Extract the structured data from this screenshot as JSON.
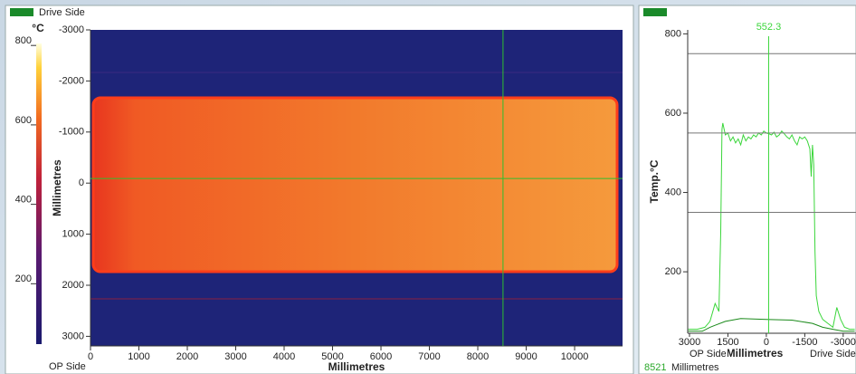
{
  "chart_data": [
    {
      "type": "heatmap",
      "title": "Drive Side",
      "xlabel": "Millimetres",
      "ylabel": "Millimetres",
      "corner_label": "OP Side",
      "xlim": [
        0,
        10990
      ],
      "ylim": [
        -3000,
        3188
      ],
      "xticks": [
        0,
        1000,
        2000,
        3000,
        4000,
        5000,
        6000,
        7000,
        8000,
        9000,
        10000
      ],
      "yticks": [
        -3000,
        -2000,
        -1000,
        0,
        1000,
        2000,
        3000
      ],
      "colorbar": {
        "label": "°C",
        "lim": [
          48,
          805
        ],
        "ticks": [
          200,
          400,
          600,
          800
        ]
      },
      "cursor": {
        "x": 8521,
        "y": -90
      },
      "cursor_unit": "Millimetres"
    },
    {
      "type": "line",
      "ylabel": "Temp.°C",
      "xlabel": "Millimetres",
      "left_label": "OP Side",
      "right_label": "Drive Side",
      "xlim": [
        3070,
        -3500
      ],
      "ylim": [
        45,
        810
      ],
      "xticks": [
        3000,
        1500,
        0,
        -1500,
        -3000
      ],
      "yticks": [
        200,
        400,
        600,
        800
      ],
      "reference_lines": [
        350,
        550,
        750
      ],
      "cursor_x": -90,
      "cursor_value": 552.3,
      "series": [
        {
          "color": "#3bd63b",
          "x": [
            3050,
            2700,
            2400,
            2200,
            2000,
            1850,
            1780,
            1730,
            1700,
            1650,
            1600,
            1500,
            1400,
            1300,
            1200,
            1100,
            1000,
            900,
            800,
            700,
            600,
            500,
            400,
            300,
            200,
            100,
            0,
            -100,
            -200,
            -300,
            -400,
            -500,
            -600,
            -700,
            -800,
            -900,
            -1000,
            -1100,
            -1200,
            -1300,
            -1400,
            -1500,
            -1600,
            -1700,
            -1750,
            -1800,
            -1850,
            -1900,
            -1950,
            -2050,
            -2200,
            -2400,
            -2600,
            -2750,
            -2900,
            -3050,
            -3250,
            -3450
          ],
          "values": [
            55,
            55,
            60,
            75,
            120,
            100,
            300,
            560,
            575,
            560,
            545,
            550,
            530,
            540,
            525,
            535,
            520,
            545,
            530,
            540,
            535,
            545,
            540,
            550,
            545,
            555,
            550,
            548,
            545,
            552,
            540,
            545,
            555,
            548,
            540,
            535,
            545,
            530,
            520,
            540,
            535,
            540,
            530,
            510,
            440,
            520,
            470,
            250,
            140,
            100,
            80,
            70,
            60,
            110,
            80,
            60,
            55,
            55
          ]
        },
        {
          "color": "#1b8a1b",
          "x": [
            3050,
            2500,
            2200,
            2000,
            1600,
            1000,
            0,
            -1000,
            -1800,
            -2200,
            -2600,
            -3000,
            -3450
          ],
          "values": [
            50,
            50,
            60,
            65,
            75,
            82,
            80,
            78,
            70,
            60,
            55,
            50,
            50
          ]
        }
      ]
    }
  ]
}
